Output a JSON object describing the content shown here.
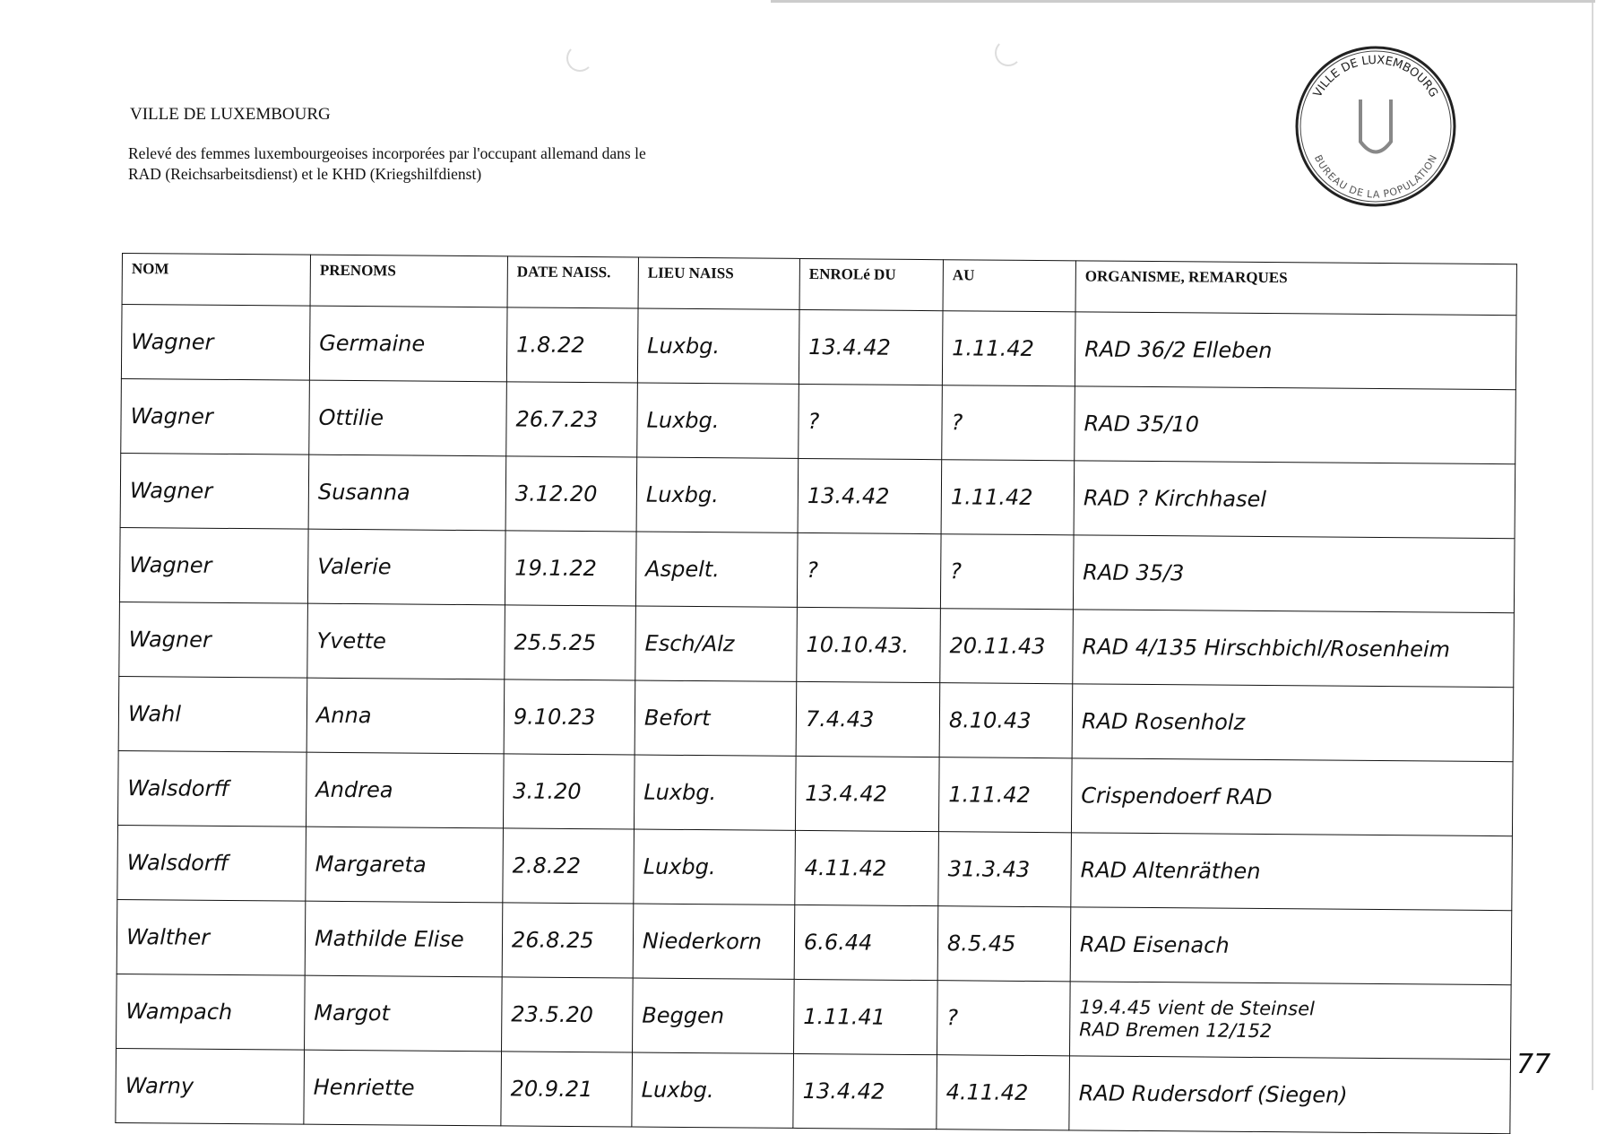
{
  "header": {
    "city": "VILLE DE LUXEMBOURG",
    "description_line1": "Relevé des femmes luxembourgeoises incorporées par l'occupant allemand dans le",
    "description_line2": "RAD (Reichsarbeitsdienst) et le KHD (Kriegshilfdienst)"
  },
  "stamp": {
    "outer_text_top": "VILLE DE LUXEMBOURG",
    "outer_text_bottom": "BUREAU DE LA POPULATION"
  },
  "table": {
    "columns": [
      "NOM",
      "PRENOMS",
      "DATE NAISS.",
      "LIEU NAISS",
      "ENROLé DU",
      "AU",
      "ORGANISME, REMARQUES"
    ],
    "rows": [
      [
        "Wagner",
        "Germaine",
        "1.8.22",
        "Luxbg.",
        "13.4.42",
        "1.11.42",
        "RAD 36/2 Elleben"
      ],
      [
        "Wagner",
        "Ottilie",
        "26.7.23",
        "Luxbg.",
        "?",
        "?",
        "RAD 35/10"
      ],
      [
        "Wagner",
        "Susanna",
        "3.12.20",
        "Luxbg.",
        "13.4.42",
        "1.11.42",
        "RAD ? Kirchhasel"
      ],
      [
        "Wagner",
        "Valerie",
        "19.1.22",
        "Aspelt.",
        "?",
        "?",
        "RAD 35/3"
      ],
      [
        "Wagner",
        "Yvette",
        "25.5.25",
        "Esch/Alz",
        "10.10.43.",
        "20.11.43",
        "RAD 4/135 Hirschbichl/Rosenheim"
      ],
      [
        "Wahl",
        "Anna",
        "9.10.23",
        "Befort",
        "7.4.43",
        "8.10.43",
        "RAD Rosenholz"
      ],
      [
        "Walsdorff",
        "Andrea",
        "3.1.20",
        "Luxbg.",
        "13.4.42",
        "1.11.42",
        "Crispendoerf RAD"
      ],
      [
        "Walsdorff",
        "Margareta",
        "2.8.22",
        "Luxbg.",
        "4.11.42",
        "31.3.43",
        "RAD Altenräthen"
      ],
      [
        "Walther",
        "Mathilde Elise",
        "26.8.25",
        "Niederkorn",
        "6.6.44",
        "8.5.45",
        "RAD Eisenach"
      ],
      [
        "Wampach",
        "Margot",
        "23.5.20",
        "Beggen",
        "1.11.41",
        "?",
        "19.4.45 vient de Steinsel\nRAD Bremen 12/152"
      ],
      [
        "Warny",
        "Henriette",
        "20.9.21",
        "Luxbg.",
        "13.4.42",
        "4.11.42",
        "RAD Rudersdorf (Siegen)"
      ]
    ]
  },
  "page_number": "77"
}
